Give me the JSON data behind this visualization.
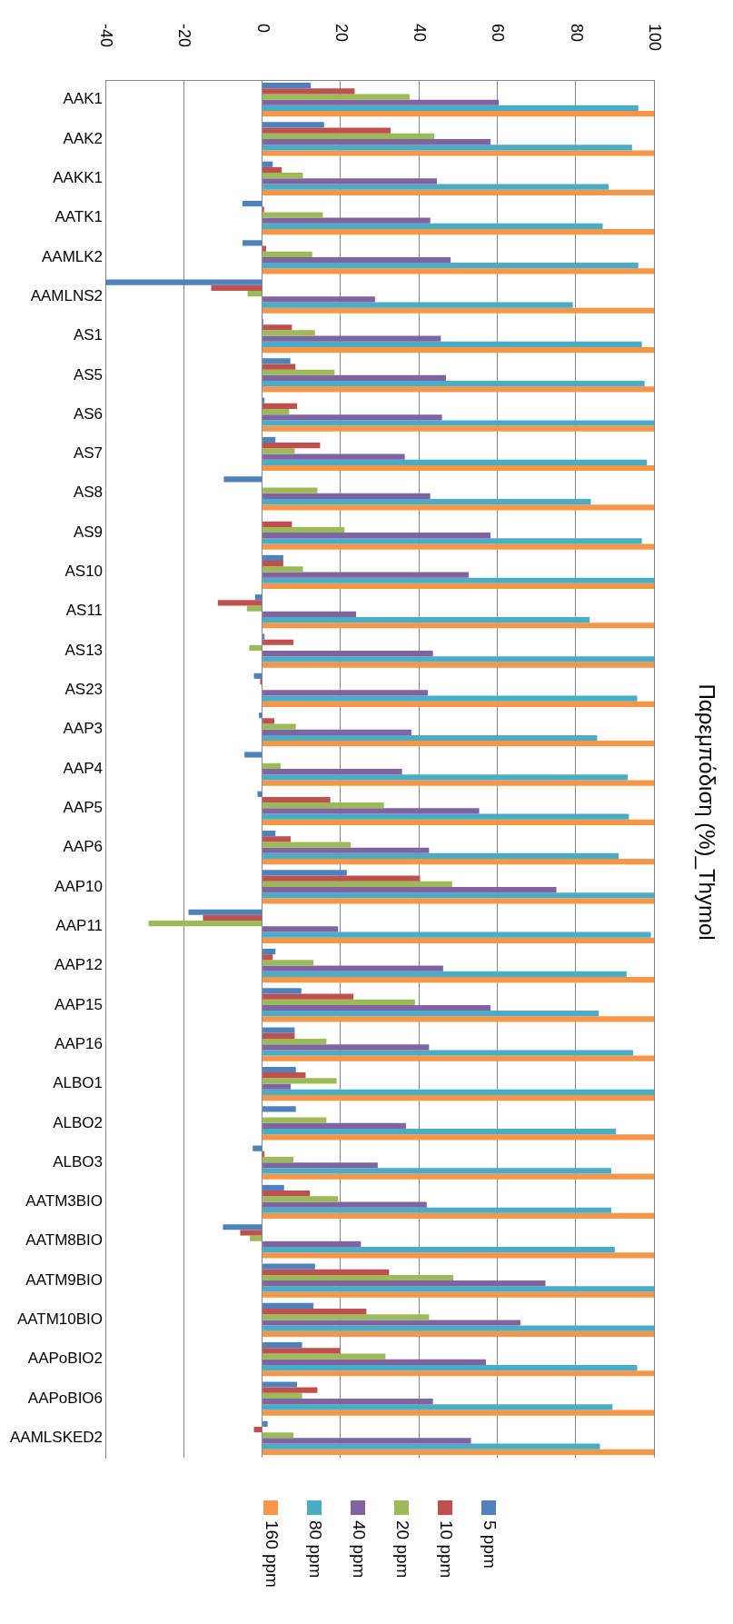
{
  "chart_data": {
    "type": "bar",
    "orientation": "horizontal",
    "title": "Παρεμπόδιση (%)_Thymol",
    "categories": [
      "AAK1",
      "AAK2",
      "AAKK1",
      "AATK1",
      "AAMLK2",
      "AAMLNS2",
      "AS1",
      "AS5",
      "AS6",
      "AS7",
      "AS8",
      "AS9",
      "AS10",
      "AS11",
      "AS13",
      "AS23",
      "AAP3",
      "AAP4",
      "AAP5",
      "AAP6",
      "AAP10",
      "AAP11",
      "AAP12",
      "AAP15",
      "AAP16",
      "ALBO1",
      "ALBO2",
      "ALBO3",
      "AATM3BIO",
      "AATM8BIO",
      "AATM9BIO",
      "AATM10BIO",
      "AAPoBIO2",
      "AAPoBIO6",
      "AAMLSKED2"
    ],
    "series": [
      {
        "name": "5 ppm",
        "color": "#4f81bd",
        "values": [
          12.4,
          15.8,
          2.7,
          -5,
          -5,
          -40,
          0.3,
          7.2,
          0.6,
          3.4,
          -9.8,
          0,
          5.4,
          -1.8,
          0.6,
          -2.1,
          -0.8,
          -4.5,
          -1.2,
          3.4,
          21.6,
          -18.8,
          3.4,
          10,
          8.3,
          8.6,
          8.6,
          -2.4,
          5.6,
          -10,
          13.5,
          13.1,
          10.2,
          8.9,
          1.4
        ]
      },
      {
        "name": "10 ppm",
        "color": "#c0504d",
        "values": [
          23.6,
          32.8,
          5,
          0.5,
          1,
          -13,
          7.6,
          8.5,
          8.9,
          14.8,
          0,
          7.6,
          5.4,
          -11.3,
          8,
          -0.5,
          3.1,
          0,
          17.4,
          7.3,
          40.3,
          -15.1,
          2.7,
          23.3,
          8.3,
          11.1,
          0,
          0.6,
          12.2,
          -5.6,
          32.4,
          26.6,
          19.9,
          14.1,
          -2.1
        ]
      },
      {
        "name": "20 ppm",
        "color": "#9bbb59",
        "values": [
          37.6,
          43.9,
          10.4,
          15.5,
          12.8,
          -3.7,
          13.5,
          18.5,
          6.9,
          8.3,
          14.1,
          21,
          10.4,
          -3.9,
          -3.3,
          0,
          8.6,
          4.7,
          31.1,
          22.6,
          48.5,
          -29,
          13.1,
          39,
          16.4,
          19,
          16.4,
          8,
          19.4,
          -3.1,
          48.8,
          42.6,
          31.5,
          10.2,
          8
        ]
      },
      {
        "name": "40 ppm",
        "color": "#8064a2",
        "values": [
          60.4,
          58.3,
          44.6,
          42.9,
          48.1,
          28.8,
          45.6,
          46.9,
          45.9,
          36.4,
          42.9,
          58.3,
          52.7,
          24,
          43.6,
          42.3,
          38.1,
          35.7,
          55.4,
          42.6,
          75.1,
          19.4,
          46.2,
          58.3,
          42.6,
          7.3,
          36.7,
          29.5,
          42,
          25.2,
          72.3,
          65.9,
          57.1,
          43.6,
          53.3
        ]
      },
      {
        "name": "80 ppm",
        "color": "#4bacc6",
        "values": [
          96,
          94.4,
          88.4,
          86.9,
          96,
          79.3,
          96.9,
          97.6,
          100,
          98.2,
          83.9,
          96.9,
          100,
          83.6,
          100,
          95.7,
          85.5,
          93.3,
          93.6,
          91,
          100,
          99.2,
          93,
          85.9,
          94.7,
          100,
          90.3,
          89.1,
          89.1,
          90,
          100,
          100,
          95.7,
          89.4,
          86.2
        ]
      },
      {
        "name": "160 ppm",
        "color": "#f79646",
        "values": [
          100,
          100,
          100,
          100,
          100,
          100,
          100,
          100,
          100,
          100,
          100,
          100,
          100,
          100,
          100,
          100,
          100,
          100,
          100,
          100,
          100,
          100,
          100,
          100,
          100,
          100,
          100,
          100,
          100,
          100,
          100,
          100,
          100,
          100,
          100
        ]
      }
    ],
    "xlim": [
      -40,
      100
    ],
    "xticks": [
      -40,
      -20,
      0,
      20,
      40,
      60,
      80,
      100
    ],
    "grid": "x",
    "legend": "bottom"
  }
}
